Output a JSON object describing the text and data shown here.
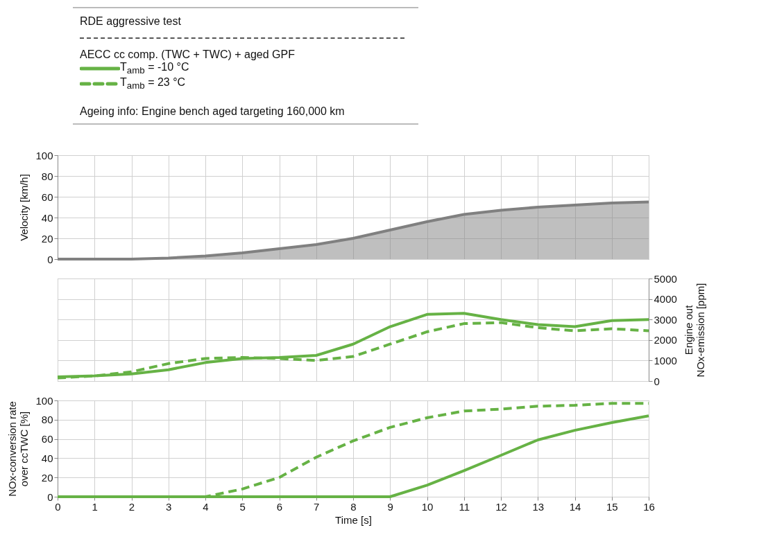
{
  "chart_data": [
    {
      "type": "area",
      "title": "RDE aggressive test",
      "annotations": [
        "Ageing info: Engine bench aged targeting 160,000 km"
      ],
      "ylabel": "Velocity [km/h]",
      "x": [
        0,
        1,
        2,
        3,
        4,
        5,
        6,
        7,
        8,
        9,
        10,
        11,
        12,
        13,
        14,
        15,
        16
      ],
      "series": [
        {
          "color": "#808080",
          "values": [
            0,
            0,
            0,
            1,
            3,
            6,
            10,
            14,
            20,
            28,
            36,
            43,
            47,
            50,
            52,
            54,
            55
          ]
        }
      ],
      "xlim": [
        0,
        16
      ],
      "xticks": [
        0,
        1,
        2,
        3,
        4,
        5,
        6,
        7,
        8,
        9,
        10,
        11,
        12,
        13,
        14,
        15,
        16
      ],
      "ylim": [
        0,
        100
      ],
      "yticks": [
        0,
        20,
        40,
        60,
        80,
        100
      ],
      "grid": true,
      "tick_labels": "y"
    },
    {
      "type": "line",
      "legend_title": "AECC cc comp. (TWC + TWC) + aged GPF",
      "legend": "top left",
      "y2label": "Engine out\nNOx-emission [ppm]",
      "x": [
        0,
        1,
        2,
        3,
        4,
        5,
        6,
        7,
        8,
        9,
        10,
        11,
        12,
        13,
        14,
        15,
        16
      ],
      "series": [
        {
          "name": "T$_{amb}$ = -10 °C",
          "color": "#66b245",
          "line_style": "solid",
          "axis": "y2",
          "values": [
            200,
            250,
            350,
            550,
            900,
            1100,
            1150,
            1250,
            1800,
            2650,
            3250,
            3300,
            3000,
            2750,
            2650,
            2950,
            3000
          ]
        },
        {
          "name": "T$_{amb}$ = 23 °C",
          "color": "#66b245",
          "line_style": "dashed",
          "axis": "y2",
          "values": [
            150,
            250,
            450,
            850,
            1100,
            1150,
            1100,
            1000,
            1200,
            1800,
            2400,
            2800,
            2850,
            2600,
            2450,
            2550,
            2450
          ]
        }
      ],
      "xlim": [
        0,
        16
      ],
      "xticks": [
        0,
        1,
        2,
        3,
        4,
        5,
        6,
        7,
        8,
        9,
        10,
        11,
        12,
        13,
        14,
        15,
        16
      ],
      "y2lim": [
        0,
        5000
      ],
      "y2ticks": [
        0,
        1000,
        2000,
        3000,
        4000,
        5000
      ],
      "grid": true,
      "tick_labels": "y"
    },
    {
      "type": "line",
      "xlabel": "Time [s]",
      "ylabel": "NOx-conversion rate\nover ccTWC [%]",
      "x": [
        0,
        1,
        2,
        3,
        4,
        5,
        6,
        7,
        8,
        9,
        10,
        11,
        12,
        13,
        14,
        15,
        16
      ],
      "series": [
        {
          "color": "#66b245",
          "line_style": "solid",
          "values": [
            0,
            0,
            0,
            0,
            0,
            0,
            0,
            0,
            0,
            0,
            12,
            27,
            43,
            59,
            69,
            77,
            84
          ]
        },
        {
          "color": "#66b245",
          "line_style": "dashed",
          "values": [
            0,
            0,
            0,
            0,
            0,
            8,
            20,
            41,
            58,
            72,
            82,
            89,
            91,
            94,
            95,
            97,
            97
          ]
        }
      ],
      "xlim": [
        0,
        16
      ],
      "xticks": [
        0,
        1,
        2,
        3,
        4,
        5,
        6,
        7,
        8,
        9,
        10,
        11,
        12,
        13,
        14,
        15,
        16
      ],
      "ylim": [
        0,
        100
      ],
      "yticks": [
        0,
        20,
        40,
        60,
        80,
        100
      ],
      "grid": true
    }
  ]
}
